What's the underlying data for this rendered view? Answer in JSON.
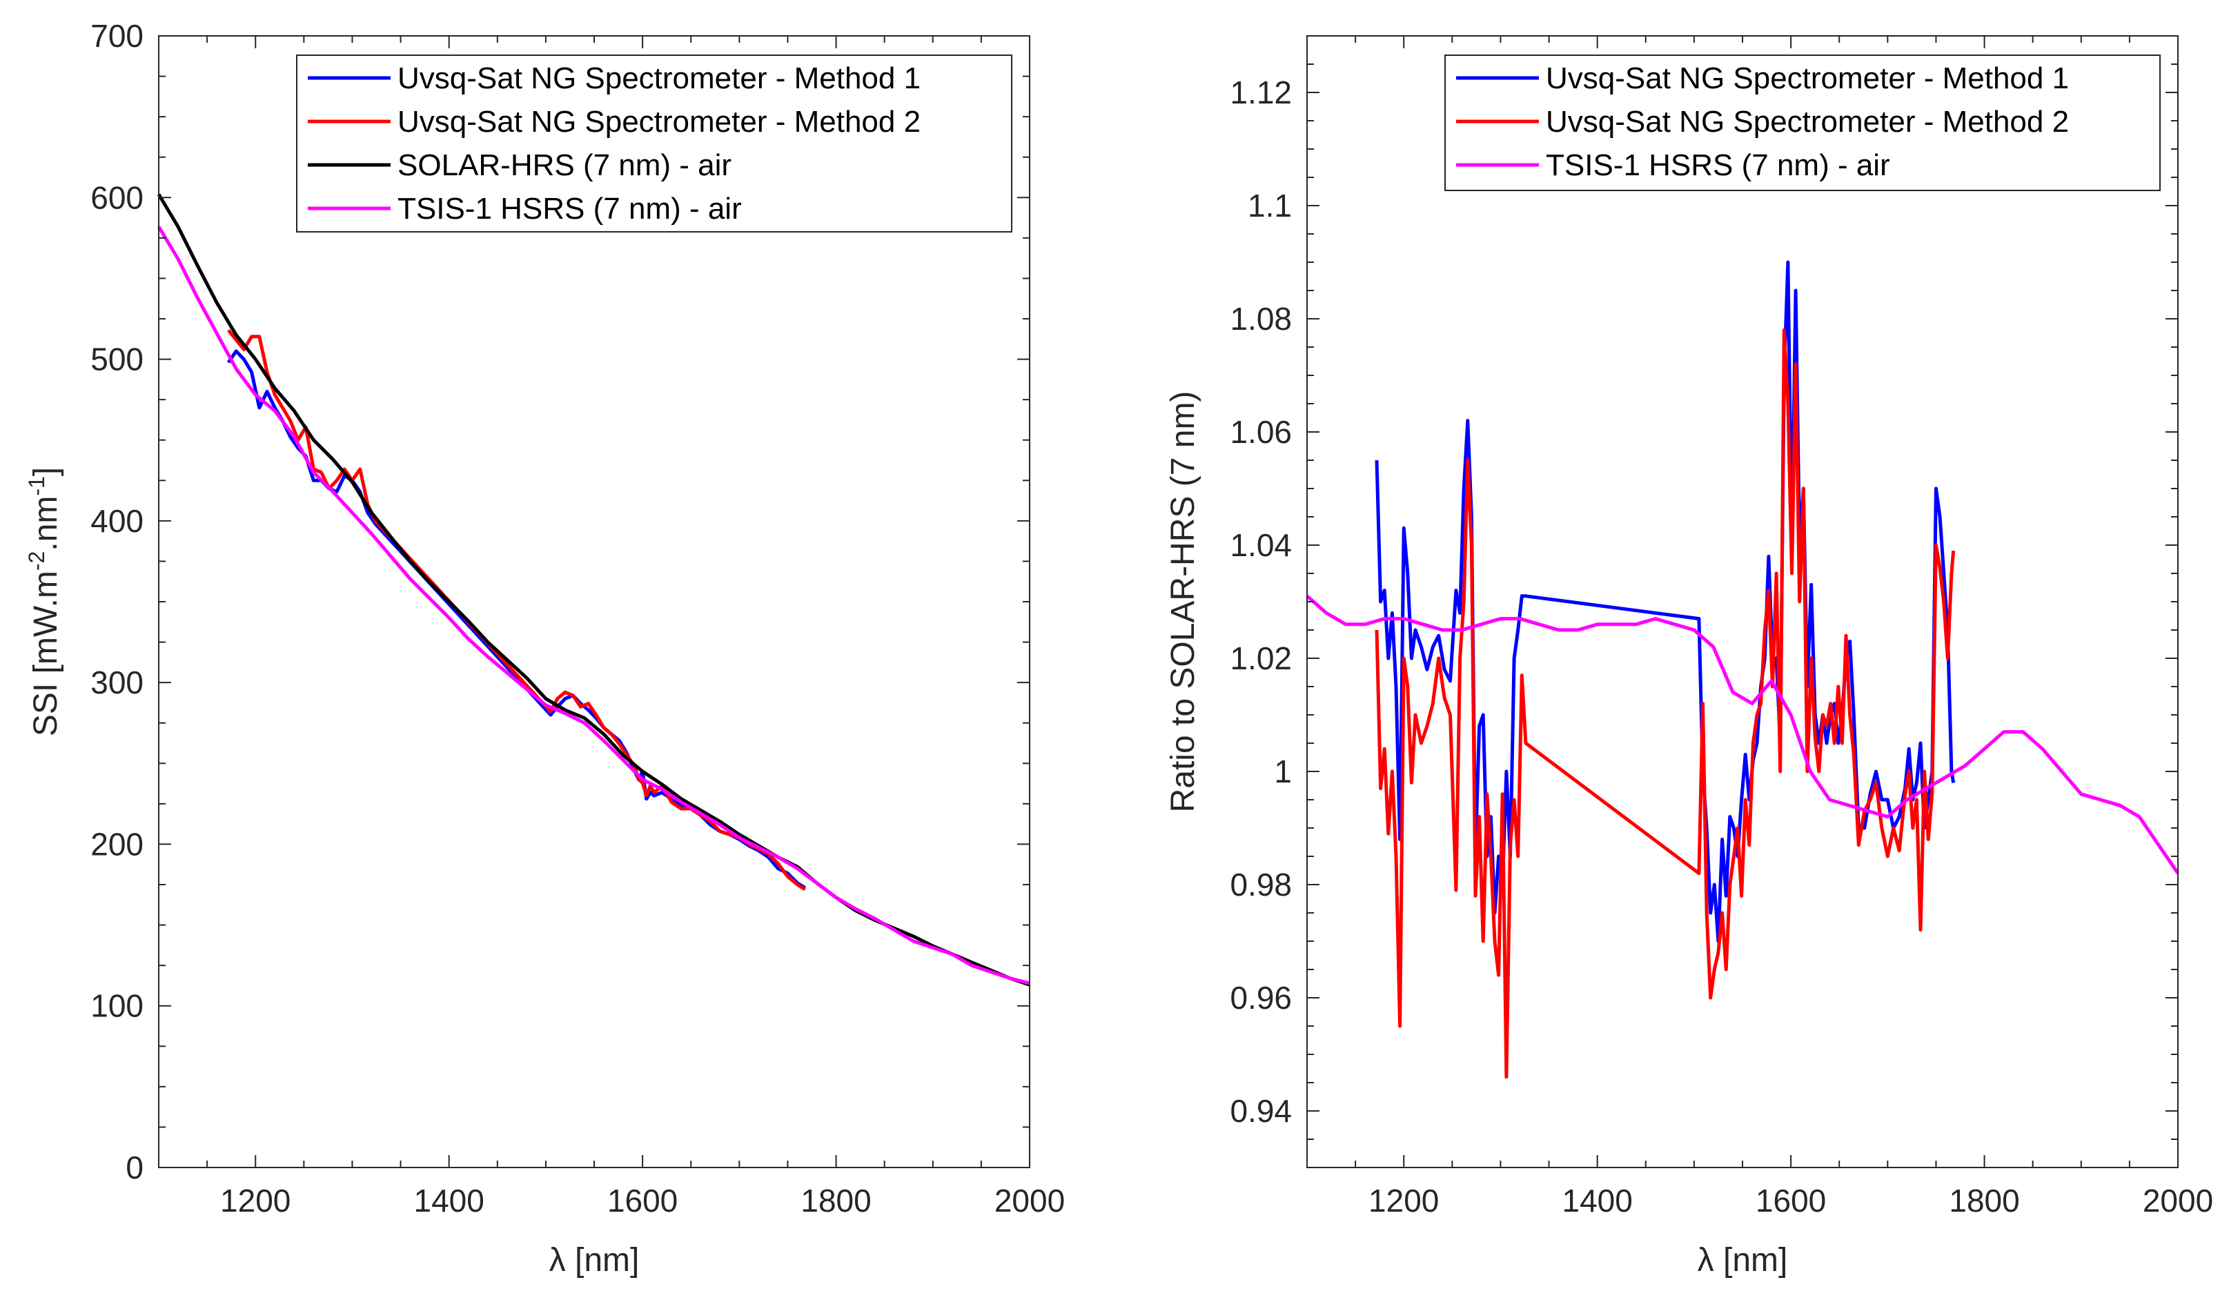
{
  "chart_data": [
    {
      "type": "line",
      "xlabel": "λ [nm]",
      "ylabel": "SSI [mW.m-2.nm-1]",
      "ylabel_parts": {
        "a": "SSI [mW.m",
        "sup1": "-2",
        "b": ".nm",
        "sup2": "-1",
        "c": "]"
      },
      "xlim": [
        1100,
        2000
      ],
      "ylim": [
        0,
        700
      ],
      "xticks": [
        1200,
        1400,
        1600,
        1800,
        2000
      ],
      "yticks": [
        0,
        100,
        200,
        300,
        400,
        500,
        600,
        700
      ],
      "legend_position": "top-right",
      "series": [
        {
          "name": "Uvsq-Sat NG Spectrometer - Method 1",
          "color": "#0000ff",
          "x": [
            1172,
            1180,
            1188,
            1196,
            1204,
            1212,
            1220,
            1228,
            1236,
            1244,
            1252,
            1260,
            1268,
            1276,
            1284,
            1292,
            1300,
            1308,
            1316,
            1324,
            1505,
            1512,
            1520,
            1528,
            1536,
            1544,
            1552,
            1560,
            1568,
            1576,
            1584,
            1592,
            1596,
            1600,
            1604,
            1608,
            1612,
            1620,
            1630,
            1640,
            1650,
            1660,
            1670,
            1680,
            1690,
            1700,
            1710,
            1720,
            1730,
            1740,
            1750,
            1760,
            1768
          ],
          "y": [
            498,
            505,
            500,
            492,
            470,
            480,
            470,
            462,
            452,
            445,
            440,
            425,
            425,
            420,
            418,
            428,
            425,
            418,
            405,
            398,
            280,
            285,
            290,
            292,
            287,
            283,
            278,
            272,
            268,
            264,
            256,
            245,
            240,
            245,
            228,
            232,
            230,
            232,
            228,
            224,
            222,
            218,
            212,
            208,
            206,
            203,
            199,
            196,
            192,
            185,
            182,
            176,
            173
          ]
        },
        {
          "name": "Uvsq-Sat NG Spectrometer - Method 2",
          "color": "#ff0000",
          "x": [
            1172,
            1180,
            1188,
            1196,
            1204,
            1212,
            1220,
            1228,
            1236,
            1244,
            1252,
            1260,
            1268,
            1276,
            1284,
            1292,
            1300,
            1308,
            1316,
            1324,
            1505,
            1512,
            1520,
            1528,
            1536,
            1544,
            1552,
            1560,
            1568,
            1576,
            1584,
            1592,
            1596,
            1600,
            1604,
            1608,
            1612,
            1620,
            1630,
            1640,
            1650,
            1660,
            1670,
            1680,
            1690,
            1700,
            1710,
            1720,
            1730,
            1740,
            1750,
            1760,
            1768
          ],
          "y": [
            518,
            512,
            506,
            514,
            514,
            492,
            478,
            470,
            462,
            450,
            458,
            432,
            430,
            420,
            425,
            432,
            425,
            432,
            410,
            400,
            282,
            290,
            294,
            292,
            285,
            287,
            280,
            272,
            268,
            262,
            255,
            248,
            240,
            238,
            230,
            236,
            232,
            236,
            226,
            222,
            222,
            218,
            214,
            208,
            206,
            204,
            200,
            197,
            194,
            188,
            180,
            175,
            172
          ]
        },
        {
          "name": "SOLAR-HRS (7 nm) - air",
          "color": "#000000",
          "x": [
            1100,
            1120,
            1140,
            1160,
            1180,
            1200,
            1220,
            1240,
            1260,
            1280,
            1300,
            1320,
            1340,
            1360,
            1380,
            1400,
            1420,
            1440,
            1460,
            1480,
            1500,
            1520,
            1540,
            1560,
            1580,
            1600,
            1620,
            1640,
            1660,
            1680,
            1700,
            1720,
            1740,
            1760,
            1780,
            1800,
            1820,
            1840,
            1860,
            1880,
            1900,
            1920,
            1940,
            1960,
            1980,
            2000
          ],
          "y": [
            602,
            582,
            558,
            535,
            515,
            500,
            482,
            468,
            450,
            438,
            424,
            405,
            390,
            375,
            362,
            350,
            338,
            325,
            314,
            303,
            290,
            283,
            278,
            268,
            255,
            245,
            237,
            228,
            221,
            214,
            206,
            199,
            192,
            186,
            176,
            167,
            159,
            153,
            148,
            143,
            137,
            132,
            127,
            122,
            117,
            113
          ]
        },
        {
          "name": "TSIS-1 HSRS (7 nm) - air",
          "color": "#ff00ff",
          "x": [
            1100,
            1120,
            1140,
            1160,
            1180,
            1200,
            1220,
            1240,
            1260,
            1280,
            1300,
            1320,
            1340,
            1360,
            1380,
            1400,
            1420,
            1440,
            1460,
            1480,
            1500,
            1520,
            1540,
            1560,
            1580,
            1600,
            1620,
            1640,
            1660,
            1680,
            1700,
            1720,
            1740,
            1760,
            1780,
            1800,
            1820,
            1840,
            1860,
            1880,
            1900,
            1920,
            1940,
            1960,
            1980,
            2000
          ],
          "y": [
            582,
            562,
            538,
            516,
            494,
            478,
            468,
            452,
            430,
            418,
            405,
            392,
            378,
            364,
            352,
            340,
            327,
            316,
            306,
            296,
            286,
            281,
            275,
            264,
            252,
            240,
            234,
            226,
            219,
            212,
            204,
            198,
            192,
            185,
            176,
            167,
            160,
            154,
            147,
            140,
            136,
            132,
            125,
            121,
            117,
            114
          ]
        }
      ]
    },
    {
      "type": "line",
      "xlabel": "λ [nm]",
      "ylabel": "Ratio to SOLAR-HRS (7 nm)",
      "xlim": [
        1100,
        2000
      ],
      "ylim": [
        0.93,
        1.13
      ],
      "xticks": [
        1200,
        1400,
        1600,
        1800,
        2000
      ],
      "yticks": [
        0.94,
        0.96,
        0.98,
        1,
        1.02,
        1.04,
        1.06,
        1.08,
        1.1,
        1.12
      ],
      "ytick_labels": [
        "0.94",
        "0.96",
        "0.98",
        "1",
        "1.02",
        "1.04",
        "1.06",
        "1.08",
        "1.1",
        "1.12"
      ],
      "legend_position": "top-right",
      "series": [
        {
          "name": "Uvsq-Sat NG Spectrometer - Method 1",
          "color": "#0000ff",
          "x": [
            1172,
            1176,
            1180,
            1184,
            1188,
            1192,
            1196,
            1200,
            1204,
            1208,
            1212,
            1218,
            1224,
            1230,
            1236,
            1242,
            1248,
            1254,
            1258,
            1262,
            1266,
            1270,
            1274,
            1278,
            1282,
            1286,
            1290,
            1294,
            1298,
            1302,
            1306,
            1310,
            1314,
            1318,
            1322,
            1326,
            1505,
            1509,
            1513,
            1517,
            1521,
            1525,
            1529,
            1533,
            1537,
            1541,
            1545,
            1549,
            1553,
            1557,
            1561,
            1565,
            1569,
            1573,
            1577,
            1581,
            1585,
            1589,
            1593,
            1597,
            1601,
            1605,
            1609,
            1613,
            1617,
            1621,
            1625,
            1629,
            1633,
            1637,
            1641,
            1645,
            1649,
            1653,
            1657,
            1661,
            1665,
            1670,
            1676,
            1682,
            1688,
            1694,
            1700,
            1706,
            1712,
            1718,
            1722,
            1726,
            1730,
            1734,
            1738,
            1742,
            1746,
            1750,
            1754,
            1758,
            1762,
            1766,
            1768
          ],
          "y": [
            1.055,
            1.03,
            1.032,
            1.02,
            1.028,
            1.015,
            0.988,
            1.043,
            1.035,
            1.02,
            1.025,
            1.022,
            1.018,
            1.022,
            1.024,
            1.018,
            1.016,
            1.032,
            1.028,
            1.05,
            1.062,
            1.045,
            0.985,
            1.008,
            1.01,
            0.985,
            0.992,
            0.975,
            0.985,
            0.98,
            1.0,
            0.985,
            1.02,
            1.025,
            1.031,
            1.031,
            1.027,
            1.0,
            0.99,
            0.975,
            0.98,
            0.97,
            0.988,
            0.978,
            0.992,
            0.99,
            0.985,
            0.995,
            1.003,
            0.995,
            1.002,
            1.005,
            1.015,
            1.02,
            1.038,
            1.02,
            1.02,
            1.005,
            1.07,
            1.09,
            1.04,
            1.085,
            1.04,
            1.05,
            1.015,
            1.033,
            1.01,
            1.005,
            1.01,
            1.005,
            1.01,
            1.012,
            1.005,
            1.01,
            1.02,
            1.023,
            1.01,
            0.99,
            0.99,
            0.996,
            1.0,
            0.995,
            0.995,
            0.99,
            0.992,
            0.997,
            1.004,
            0.995,
            0.998,
            1.005,
            0.99,
            0.995,
            1.0,
            1.05,
            1.045,
            1.035,
            1.025,
            1.0,
            0.998
          ]
        },
        {
          "name": "Uvsq-Sat NG Spectrometer - Method 2",
          "color": "#ff0000",
          "x": [
            1172,
            1176,
            1180,
            1184,
            1188,
            1192,
            1196,
            1200,
            1204,
            1208,
            1212,
            1218,
            1224,
            1230,
            1236,
            1242,
            1248,
            1254,
            1258,
            1262,
            1266,
            1270,
            1274,
            1278,
            1282,
            1286,
            1290,
            1294,
            1298,
            1302,
            1306,
            1310,
            1314,
            1318,
            1322,
            1326,
            1505,
            1509,
            1513,
            1517,
            1521,
            1525,
            1529,
            1533,
            1537,
            1541,
            1545,
            1549,
            1553,
            1557,
            1561,
            1565,
            1569,
            1573,
            1577,
            1581,
            1585,
            1589,
            1593,
            1597,
            1601,
            1605,
            1609,
            1613,
            1617,
            1621,
            1625,
            1629,
            1633,
            1637,
            1641,
            1645,
            1649,
            1653,
            1657,
            1661,
            1665,
            1670,
            1676,
            1682,
            1688,
            1694,
            1700,
            1706,
            1712,
            1718,
            1722,
            1726,
            1730,
            1734,
            1738,
            1742,
            1746,
            1750,
            1754,
            1758,
            1762,
            1766,
            1768
          ],
          "y": [
            1.025,
            0.997,
            1.004,
            0.989,
            1.0,
            0.985,
            0.955,
            1.02,
            1.015,
            0.998,
            1.01,
            1.005,
            1.008,
            1.012,
            1.02,
            1.013,
            1.01,
            0.979,
            1.02,
            1.03,
            1.055,
            1.04,
            0.978,
            0.992,
            0.97,
            0.996,
            0.985,
            0.97,
            0.964,
            0.996,
            0.946,
            0.987,
            0.995,
            0.985,
            1.017,
            1.005,
            0.982,
            1.012,
            0.975,
            0.96,
            0.965,
            0.968,
            0.975,
            0.965,
            0.98,
            0.985,
            0.99,
            0.978,
            0.995,
            0.987,
            1.005,
            1.01,
            1.012,
            1.025,
            1.032,
            1.015,
            1.035,
            1.0,
            1.078,
            1.065,
            1.035,
            1.072,
            1.03,
            1.05,
            1.0,
            1.02,
            1.006,
            1.0,
            1.01,
            1.008,
            1.012,
            1.005,
            1.015,
            1.005,
            1.024,
            1.01,
            1.003,
            0.987,
            0.993,
            0.995,
            0.998,
            0.99,
            0.985,
            0.99,
            0.986,
            0.996,
            1.0,
            0.99,
            0.995,
            0.972,
            1.0,
            0.988,
            0.996,
            1.04,
            1.036,
            1.03,
            1.02,
            1.035,
            1.039
          ]
        },
        {
          "name": "TSIS-1 HSRS (7 nm) - air",
          "color": "#ff00ff",
          "x": [
            1100,
            1120,
            1140,
            1160,
            1180,
            1200,
            1220,
            1240,
            1260,
            1280,
            1300,
            1320,
            1340,
            1360,
            1380,
            1400,
            1420,
            1440,
            1460,
            1480,
            1500,
            1520,
            1540,
            1560,
            1580,
            1600,
            1620,
            1640,
            1660,
            1680,
            1700,
            1720,
            1740,
            1760,
            1780,
            1800,
            1820,
            1840,
            1860,
            1880,
            1900,
            1920,
            1940,
            1960,
            1980,
            2000
          ],
          "y": [
            1.031,
            1.028,
            1.026,
            1.026,
            1.027,
            1.027,
            1.026,
            1.025,
            1.025,
            1.026,
            1.027,
            1.027,
            1.026,
            1.025,
            1.025,
            1.026,
            1.026,
            1.026,
            1.027,
            1.026,
            1.025,
            1.022,
            1.014,
            1.012,
            1.016,
            1.01,
            1.0,
            0.995,
            0.994,
            0.993,
            0.992,
            0.995,
            0.997,
            0.999,
            1.001,
            1.004,
            1.007,
            1.007,
            1.004,
            1.0,
            0.996,
            0.995,
            0.994,
            0.992,
            0.987,
            0.982
          ]
        }
      ]
    }
  ]
}
